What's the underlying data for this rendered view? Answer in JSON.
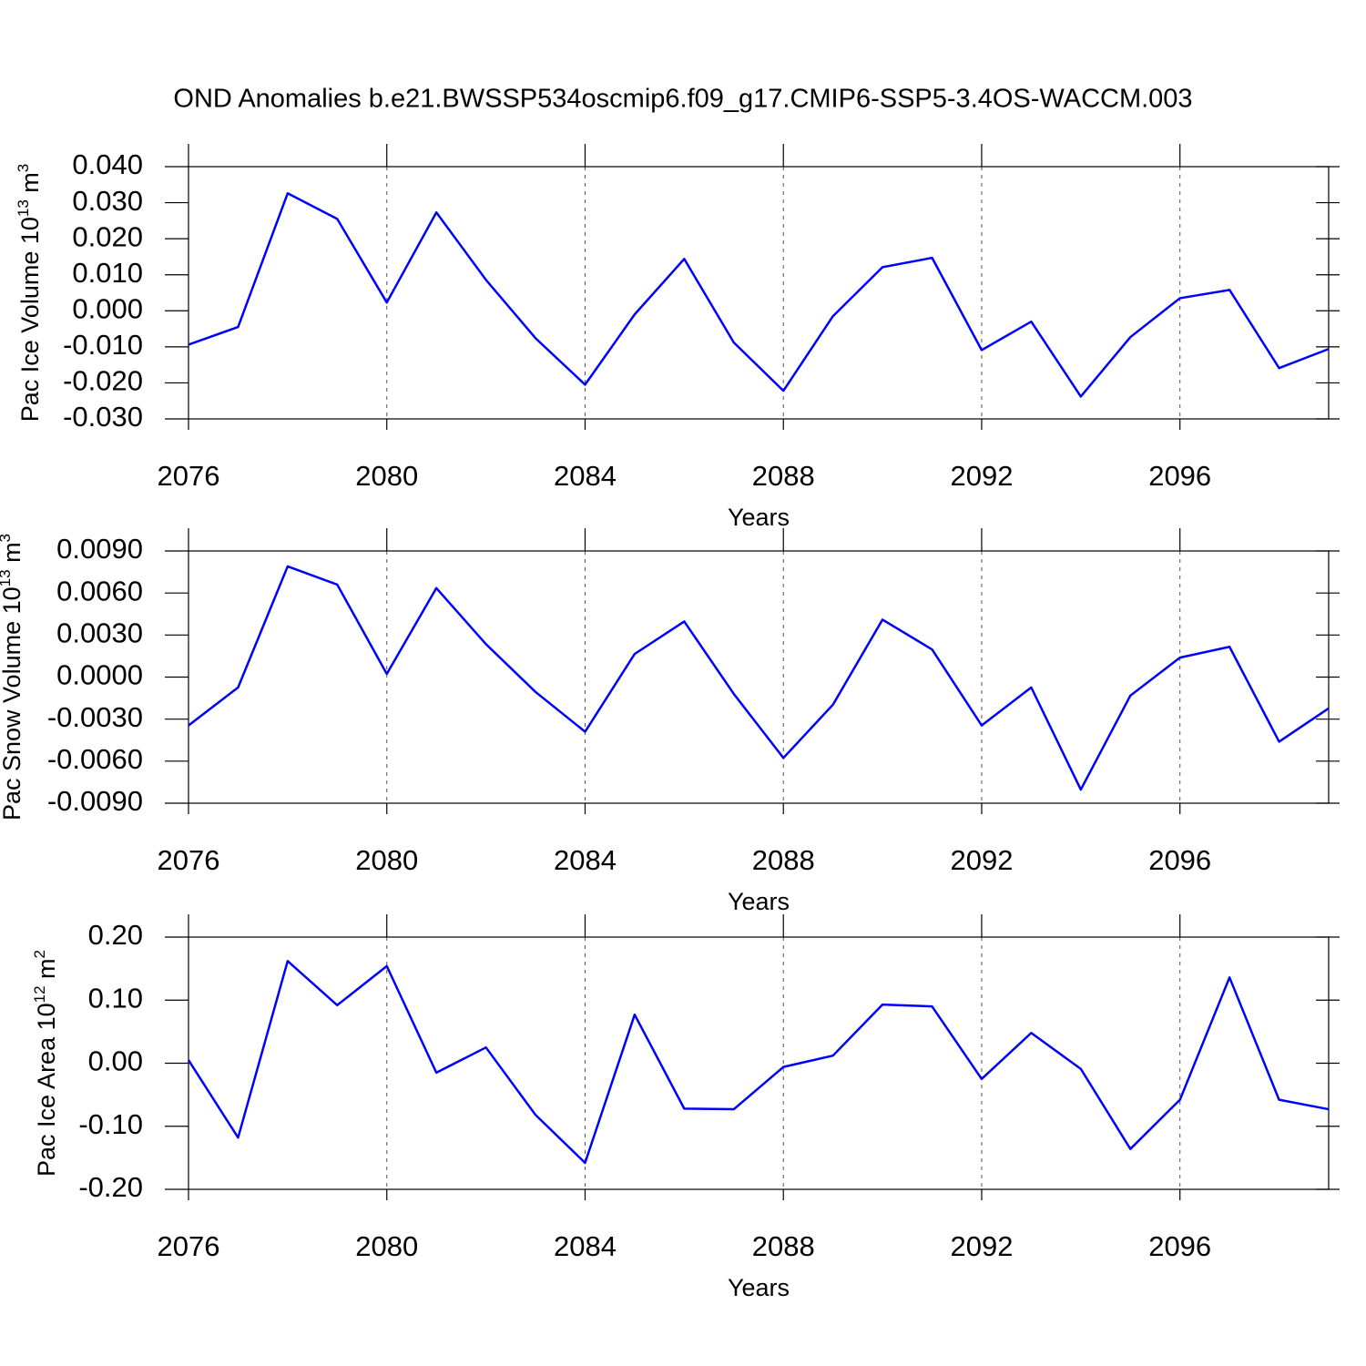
{
  "title": "OND Anomalies b.e21.BWSSP534oscmip6.f09_g17.CMIP6-SSP5-3.4OS-WACCM.003",
  "chart_data": [
    {
      "type": "line",
      "xlabel": "Years",
      "ylabel": [
        "Pac Ice Volume 10",
        "13",
        " m",
        "3"
      ],
      "x": [
        2076,
        2077,
        2078,
        2079,
        2080,
        2081,
        2082,
        2083,
        2084,
        2085,
        2086,
        2087,
        2088,
        2089,
        2090,
        2091,
        2092,
        2093,
        2094,
        2095,
        2096,
        2097,
        2098,
        2099
      ],
      "values": [
        -0.0094,
        -0.0045,
        0.0326,
        0.0255,
        0.0023,
        0.0273,
        0.0086,
        -0.0076,
        -0.0205,
        -0.001,
        0.0144,
        -0.0088,
        -0.0222,
        -0.0015,
        0.0121,
        0.0147,
        -0.0109,
        -0.003,
        -0.0238,
        -0.0073,
        0.0035,
        0.0058,
        -0.0159,
        -0.0106
      ],
      "color": "#0000ff",
      "xlim": [
        2076,
        2099
      ],
      "xticks": [
        2076,
        2080,
        2084,
        2088,
        2092,
        2096
      ],
      "ylim": [
        -0.03,
        0.04
      ],
      "yticks": [
        {
          "value": -0.03,
          "label": "-0.030"
        },
        {
          "value": -0.02,
          "label": "-0.020"
        },
        {
          "value": -0.01,
          "label": "-0.010"
        },
        {
          "value": 0,
          "label": "0.000"
        },
        {
          "value": 0.01,
          "label": "0.010"
        },
        {
          "value": 0.02,
          "label": "0.020"
        },
        {
          "value": 0.03,
          "label": "0.030"
        },
        {
          "value": 0.04,
          "label": "0.040"
        }
      ],
      "xgrid": true
    },
    {
      "type": "line",
      "xlabel": "Years",
      "ylabel": [
        "Pac Snow Volume 10",
        "13",
        " m",
        "3"
      ],
      "x": [
        2076,
        2077,
        2078,
        2079,
        2080,
        2081,
        2082,
        2083,
        2084,
        2085,
        2086,
        2087,
        2088,
        2089,
        2090,
        2091,
        2092,
        2093,
        2094,
        2095,
        2096,
        2097,
        2098,
        2099
      ],
      "values": [
        -0.00345,
        -0.00074,
        0.0079,
        0.0066,
        0.00023,
        0.00635,
        0.00235,
        -0.00106,
        -0.0039,
        0.00165,
        0.00397,
        -0.0012,
        -0.00577,
        -0.00197,
        0.0041,
        0.00197,
        -0.00345,
        -0.00074,
        -0.00803,
        -0.00132,
        0.00139,
        0.00216,
        -0.00461,
        -0.00223
      ],
      "color": "#0000ff",
      "xlim": [
        2076,
        2099
      ],
      "xticks": [
        2076,
        2080,
        2084,
        2088,
        2092,
        2096
      ],
      "ylim": [
        -0.009,
        0.009
      ],
      "yticks": [
        {
          "value": -0.009,
          "label": "-0.0090"
        },
        {
          "value": -0.006,
          "label": "-0.0060"
        },
        {
          "value": -0.003,
          "label": "-0.0030"
        },
        {
          "value": 0,
          "label": "0.0000"
        },
        {
          "value": 0.003,
          "label": "0.0030"
        },
        {
          "value": 0.006,
          "label": "0.0060"
        },
        {
          "value": 0.009,
          "label": "0.0090"
        }
      ],
      "xgrid": true
    },
    {
      "type": "line",
      "xlabel": "Years",
      "ylabel": [
        "Pac Ice Area 10",
        "12",
        " m",
        "2"
      ],
      "x": [
        2076,
        2077,
        2078,
        2079,
        2080,
        2081,
        2082,
        2083,
        2084,
        2085,
        2086,
        2087,
        2088,
        2089,
        2090,
        2091,
        2092,
        2093,
        2094,
        2095,
        2096,
        2097,
        2098,
        2099
      ],
      "values": [
        0.005,
        -0.118,
        0.162,
        0.092,
        0.154,
        -0.015,
        0.025,
        -0.082,
        -0.158,
        0.077,
        -0.072,
        -0.073,
        -0.006,
        0.012,
        0.093,
        0.09,
        -0.025,
        0.048,
        -0.009,
        -0.136,
        -0.058,
        0.136,
        -0.058,
        -0.073
      ],
      "color": "#0000ff",
      "xlim": [
        2076,
        2099
      ],
      "xticks": [
        2076,
        2080,
        2084,
        2088,
        2092,
        2096
      ],
      "ylim": [
        -0.2,
        0.2
      ],
      "yticks": [
        {
          "value": -0.2,
          "label": "-0.20"
        },
        {
          "value": -0.1,
          "label": "-0.10"
        },
        {
          "value": 0,
          "label": "0.00"
        },
        {
          "value": 0.1,
          "label": "0.10"
        },
        {
          "value": 0.2,
          "label": "0.20"
        }
      ],
      "xgrid": true
    }
  ]
}
